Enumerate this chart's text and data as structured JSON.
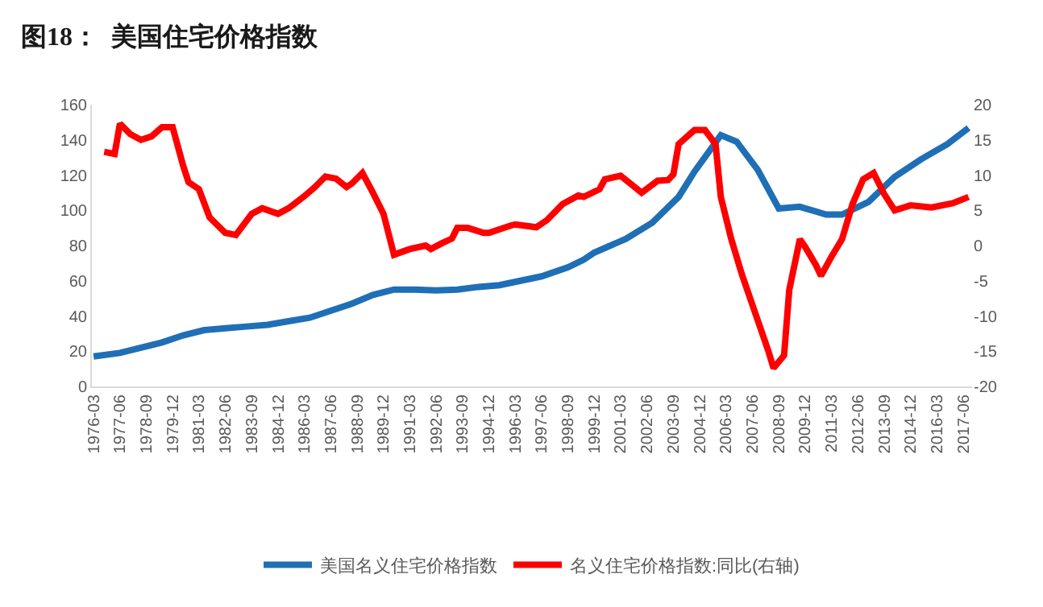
{
  "chart_data": {
    "type": "line",
    "title": "图18：  美国住宅价格指数",
    "series": [
      {
        "name": "美国名义住宅价格指数",
        "color": "#1f6fb6",
        "x": [
          "1976-03",
          "1977-06",
          "1978-06",
          "1979-06",
          "1980-06",
          "1981-06",
          "1982-06",
          "1983-06",
          "1984-06",
          "1985-06",
          "1986-06",
          "1987-06",
          "1988-06",
          "1989-06",
          "1990-06",
          "1991-06",
          "1992-06",
          "1993-06",
          "1994-06",
          "1995-06",
          "1996-06",
          "1997-06",
          "1998-09",
          "1999-06",
          "1999-12",
          "2001-06",
          "2002-09",
          "2003-12",
          "2004-09",
          "2005-12",
          "2006-09",
          "2007-09",
          "2008-09",
          "2009-09",
          "2010-12",
          "2011-09",
          "2012-12",
          "2014-03",
          "2015-06",
          "2016-09",
          "2017-09"
        ],
        "values": [
          17,
          19,
          22,
          25,
          29,
          32,
          33,
          34,
          35,
          37,
          39,
          43,
          47,
          52,
          55,
          55,
          54.5,
          55,
          56.5,
          57.5,
          60,
          62.5,
          67.6,
          72,
          76,
          83.8,
          93,
          107.6,
          122,
          142.7,
          139,
          123,
          101,
          102,
          97.6,
          97.6,
          104.7,
          119,
          129,
          137.6,
          146.8
        ]
      },
      {
        "name": "名义住宅价格指数:同比(右轴)",
        "color": "#ff0000",
        "axis": "y2",
        "x": [
          "1976-09",
          "1977-03",
          "1977-06",
          "1977-12",
          "1978-06",
          "1978-12",
          "1979-06",
          "1979-12",
          "1980-06",
          "1980-09",
          "1981-03",
          "1981-09",
          "1982-06",
          "1982-12",
          "1983-09",
          "1984-03",
          "1984-12",
          "1985-06",
          "1986-03",
          "1986-09",
          "1987-03",
          "1987-09",
          "1988-03",
          "1988-06",
          "1988-12",
          "1989-06",
          "1989-12",
          "1990-06",
          "1991-03",
          "1991-12",
          "1992-03",
          "1992-09",
          "1993-03",
          "1993-06",
          "1993-12",
          "1994-09",
          "1994-12",
          "1995-12",
          "1996-03",
          "1997-03",
          "1997-09",
          "1998-06",
          "1999-03",
          "1999-06",
          "2000-03",
          "2000-06",
          "2001-03",
          "2001-09",
          "2002-03",
          "2002-12",
          "2003-06",
          "2003-09",
          "2003-12",
          "2004-09",
          "2005-03",
          "2005-09",
          "2005-12",
          "2006-06",
          "2006-12",
          "2007-09",
          "2008-03",
          "2008-06",
          "2008-12",
          "2009-03",
          "2009-09",
          "2009-12",
          "2010-06",
          "2010-09",
          "2011-03",
          "2011-09",
          "2012-03",
          "2012-09",
          "2013-03",
          "2013-09",
          "2014-03",
          "2014-12",
          "2015-12",
          "2016-12",
          "2017-09"
        ],
        "values": [
          13.3,
          13,
          17.3,
          15.8,
          15,
          15.5,
          16.8,
          16.8,
          11.3,
          9,
          8,
          4,
          1.8,
          1.5,
          4.5,
          5.3,
          4.5,
          5.3,
          7,
          8.3,
          9.8,
          9.5,
          8.3,
          8.8,
          10.3,
          7.5,
          4.5,
          -1.3,
          -0.5,
          0,
          -0.5,
          0.3,
          1,
          2.5,
          2.5,
          1.8,
          1.8,
          2.8,
          3,
          2.6,
          3.6,
          5.9,
          7.1,
          6.9,
          8,
          9.4,
          9.9,
          8.7,
          7.5,
          9.2,
          9.3,
          10.1,
          14.4,
          16.4,
          16.4,
          14.4,
          6.9,
          0.9,
          -4.1,
          -10.6,
          -14.9,
          -17.4,
          -15.6,
          -6.3,
          0.9,
          -0.2,
          -2.7,
          -4.3,
          -1.6,
          0.9,
          5.9,
          9.4,
          10.3,
          7.3,
          5,
          5.7,
          5.4,
          6,
          6.9
        ]
      }
    ],
    "xlim": [
      "1976-02-01",
      "2017-11-01"
    ],
    "xticks": [
      {
        "value": "1976-03",
        "label": "1976-03"
      },
      {
        "value": "1977-06",
        "label": "1977-06"
      },
      {
        "value": "1978-09",
        "label": "1978-09"
      },
      {
        "value": "1979-12",
        "label": "1979-12"
      },
      {
        "value": "1981-03",
        "label": "1981-03"
      },
      {
        "value": "1982-06",
        "label": "1982-06"
      },
      {
        "value": "1983-09",
        "label": "1983-09"
      },
      {
        "value": "1984-12",
        "label": "1984-12"
      },
      {
        "value": "1986-03",
        "label": "1986-03"
      },
      {
        "value": "1987-06",
        "label": "1987-06"
      },
      {
        "value": "1988-09",
        "label": "1988-09"
      },
      {
        "value": "1989-12",
        "label": "1989-12"
      },
      {
        "value": "1991-03",
        "label": "1991-03"
      },
      {
        "value": "1992-06",
        "label": "1992-06"
      },
      {
        "value": "1993-09",
        "label": "1993-09"
      },
      {
        "value": "1994-12",
        "label": "1994-12"
      },
      {
        "value": "1996-03",
        "label": "1996-03"
      },
      {
        "value": "1997-06",
        "label": "1997-06"
      },
      {
        "value": "1998-09",
        "label": "1998-09"
      },
      {
        "value": "1999-12",
        "label": "1999-12"
      },
      {
        "value": "2001-03",
        "label": "2001-03"
      },
      {
        "value": "2002-06",
        "label": "2002-06"
      },
      {
        "value": "2003-09",
        "label": "2003-09"
      },
      {
        "value": "2004-12",
        "label": "2004-12"
      },
      {
        "value": "2006-03",
        "label": "2006-03"
      },
      {
        "value": "2007-06",
        "label": "2007-06"
      },
      {
        "value": "2008-09",
        "label": "2008-09"
      },
      {
        "value": "2009-12",
        "label": "2009-12"
      },
      {
        "value": "2011-03",
        "label": "2011-03"
      },
      {
        "value": "2012-06",
        "label": "2012-06"
      },
      {
        "value": "2013-09",
        "label": "2013-09"
      },
      {
        "value": "2014-12",
        "label": "2014-12"
      },
      {
        "value": "2016-03",
        "label": "2016-03"
      },
      {
        "value": "2017-06",
        "label": "2017-06"
      }
    ],
    "ylim": [
      0,
      160
    ],
    "yticks": [
      0,
      20,
      40,
      60,
      80,
      100,
      120,
      140,
      160
    ],
    "y2lim": [
      -20,
      20
    ],
    "y2ticks": [
      -20,
      -15,
      -10,
      -5,
      0,
      5,
      10,
      15,
      20
    ],
    "grid": false,
    "legend": "bottom",
    "marker": "none",
    "line_style": "solid"
  }
}
